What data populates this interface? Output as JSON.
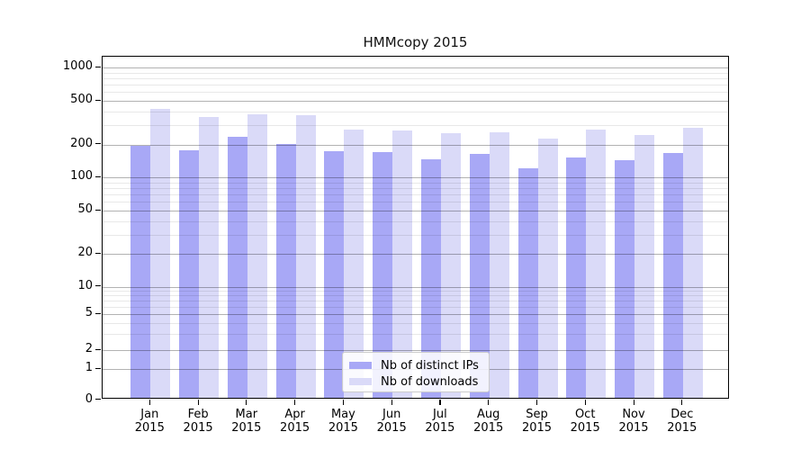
{
  "title": "HMMcopy 2015",
  "colors": {
    "ips_bar": "#a8a8f6",
    "downloads_bar": "#dadaf8",
    "grid_major": "rgba(0,0,0,0.30)",
    "grid_minor": "rgba(0,0,0,0.09)",
    "axis": "#000000"
  },
  "legend": {
    "items": [
      {
        "label": "Nb of distinct IPs",
        "series": "ips"
      },
      {
        "label": "Nb of downloads",
        "series": "downloads"
      }
    ]
  },
  "y_axis": {
    "tick_labels": [
      "1000",
      "500",
      "200",
      "100",
      "50",
      "20",
      "10",
      "5",
      "2",
      "1",
      "0"
    ],
    "major_ticks": [
      1000,
      500,
      200,
      100,
      50,
      20,
      10,
      5,
      2,
      1,
      0
    ],
    "minor_ticks": [
      3,
      4,
      6,
      7,
      8,
      9,
      30,
      40,
      60,
      70,
      80,
      90,
      300,
      400,
      600,
      700,
      800,
      900
    ]
  },
  "x_axis": {
    "months": [
      "Jan",
      "Feb",
      "Mar",
      "Apr",
      "May",
      "Jun",
      "Jul",
      "Aug",
      "Sep",
      "Oct",
      "Nov",
      "Dec"
    ],
    "year": "2015"
  },
  "chart_data": {
    "type": "bar",
    "title": "HMMcopy 2015",
    "categories": [
      "Jan 2015",
      "Feb 2015",
      "Mar 2015",
      "Apr 2015",
      "May 2015",
      "Jun 2015",
      "Jul 2015",
      "Aug 2015",
      "Sep 2015",
      "Oct 2015",
      "Nov 2015",
      "Dec 2015"
    ],
    "series": [
      {
        "name": "Nb of distinct IPs",
        "values": [
          185,
          170,
          226,
          192,
          166,
          164,
          139,
          155,
          116,
          144,
          136,
          158
        ]
      },
      {
        "name": "Nb of downloads",
        "values": [
          400,
          340,
          360,
          352,
          260,
          256,
          243,
          246,
          214,
          263,
          231,
          270
        ]
      }
    ],
    "yscale": "symlog",
    "y_ticks": [
      0,
      1,
      2,
      5,
      10,
      20,
      50,
      100,
      200,
      500,
      1000
    ],
    "ylim": [
      0,
      1270
    ],
    "grid": true,
    "legend_position": "lower center"
  }
}
